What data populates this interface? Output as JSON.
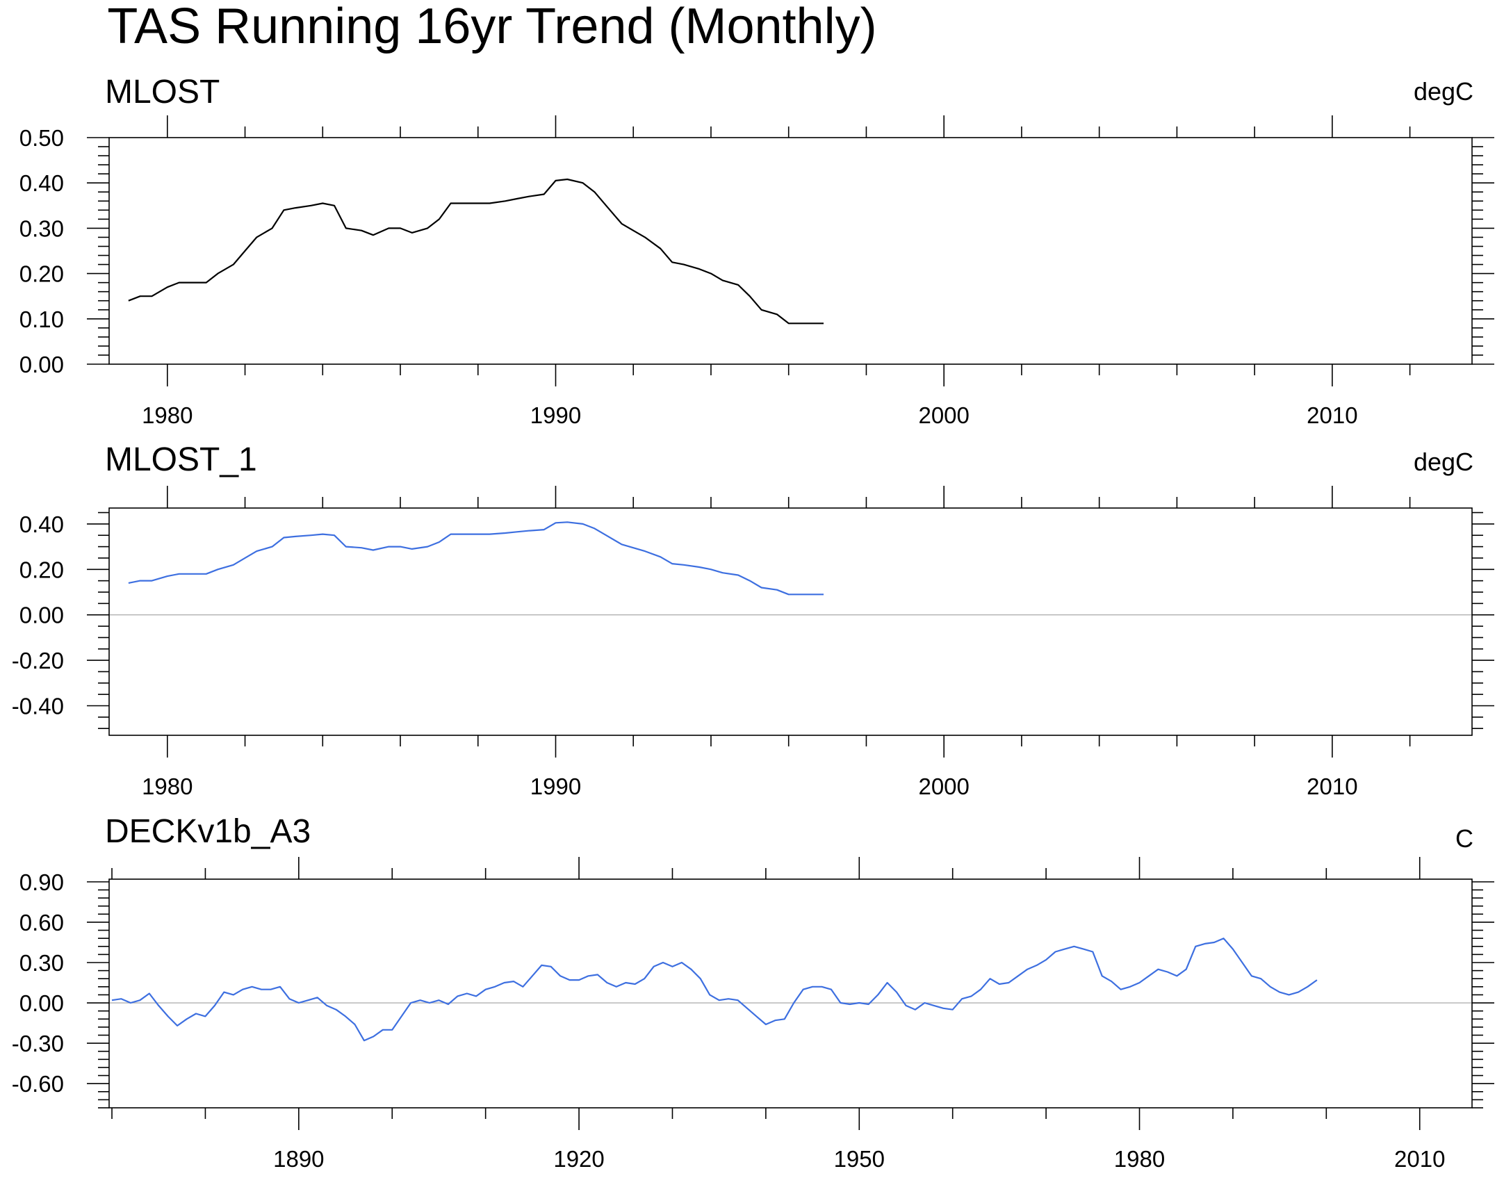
{
  "figure": {
    "title": "TAS Running 16yr Trend (Monthly)"
  },
  "chart_data": [
    {
      "type": "line",
      "title": "MLOST",
      "units": "degC",
      "xlim": [
        1978.5,
        2013.6
      ],
      "ylim": [
        0.0,
        0.5
      ],
      "x_major_ticks": [
        1980,
        1990,
        2000,
        2010
      ],
      "x_major_tick_labels": [
        "1980",
        "1990",
        "2000",
        "2010"
      ],
      "x_minor_step": 2,
      "y_major_ticks": [
        0.0,
        0.1,
        0.2,
        0.3,
        0.4,
        0.5
      ],
      "y_major_tick_labels": [
        "0.00",
        "0.10",
        "0.20",
        "0.30",
        "0.40",
        "0.50"
      ],
      "y_minor_step": 0.02,
      "zero_line": false,
      "series": [
        {
          "color": "#000000",
          "x": [
            1979.0,
            1979.3,
            1979.6,
            1980.0,
            1980.3,
            1980.7,
            1981.0,
            1981.3,
            1981.7,
            1982.0,
            1982.3,
            1982.7,
            1983.0,
            1983.3,
            1983.7,
            1984.0,
            1984.3,
            1984.6,
            1985.0,
            1985.3,
            1985.7,
            1986.0,
            1986.3,
            1986.7,
            1987.0,
            1987.3,
            1987.7,
            1988.0,
            1988.3,
            1988.7,
            1989.0,
            1989.3,
            1989.7,
            1990.0,
            1990.3,
            1990.7,
            1991.0,
            1991.3,
            1991.7,
            1992.0,
            1992.3,
            1992.7,
            1993.0,
            1993.3,
            1993.7,
            1994.0,
            1994.3,
            1994.7,
            1995.0,
            1995.3,
            1995.7,
            1996.0,
            1996.3,
            1996.7,
            1996.9
          ],
          "y": [
            0.14,
            0.15,
            0.15,
            0.17,
            0.18,
            0.18,
            0.18,
            0.2,
            0.22,
            0.25,
            0.28,
            0.3,
            0.34,
            0.345,
            0.35,
            0.355,
            0.35,
            0.3,
            0.295,
            0.285,
            0.3,
            0.3,
            0.29,
            0.3,
            0.32,
            0.355,
            0.355,
            0.355,
            0.355,
            0.36,
            0.365,
            0.37,
            0.375,
            0.405,
            0.408,
            0.4,
            0.38,
            0.35,
            0.31,
            0.295,
            0.28,
            0.255,
            0.225,
            0.22,
            0.21,
            0.2,
            0.185,
            0.175,
            0.15,
            0.12,
            0.11,
            0.09,
            0.09,
            0.09,
            0.09
          ]
        }
      ]
    },
    {
      "type": "line",
      "title": "MLOST_1",
      "units": "degC",
      "xlim": [
        1978.5,
        2013.6
      ],
      "ylim": [
        -0.53,
        0.47
      ],
      "x_major_ticks": [
        1980,
        1990,
        2000,
        2010
      ],
      "x_major_tick_labels": [
        "1980",
        "1990",
        "2000",
        "2010"
      ],
      "x_minor_step": 2,
      "y_major_ticks": [
        -0.4,
        -0.2,
        0.0,
        0.2,
        0.4
      ],
      "y_major_tick_labels": [
        "-0.40",
        "-0.20",
        "0.00",
        "0.20",
        "0.40"
      ],
      "y_minor_step": 0.05,
      "zero_line": true,
      "series": [
        {
          "color": "#3d6fe0",
          "x": [
            1979.0,
            1979.3,
            1979.6,
            1980.0,
            1980.3,
            1980.7,
            1981.0,
            1981.3,
            1981.7,
            1982.0,
            1982.3,
            1982.7,
            1983.0,
            1983.3,
            1983.7,
            1984.0,
            1984.3,
            1984.6,
            1985.0,
            1985.3,
            1985.7,
            1986.0,
            1986.3,
            1986.7,
            1987.0,
            1987.3,
            1987.7,
            1988.0,
            1988.3,
            1988.7,
            1989.0,
            1989.3,
            1989.7,
            1990.0,
            1990.3,
            1990.7,
            1991.0,
            1991.3,
            1991.7,
            1992.0,
            1992.3,
            1992.7,
            1993.0,
            1993.3,
            1993.7,
            1994.0,
            1994.3,
            1994.7,
            1995.0,
            1995.3,
            1995.7,
            1996.0,
            1996.3,
            1996.7,
            1996.9
          ],
          "y": [
            0.14,
            0.15,
            0.15,
            0.17,
            0.18,
            0.18,
            0.18,
            0.2,
            0.22,
            0.25,
            0.28,
            0.3,
            0.34,
            0.345,
            0.35,
            0.355,
            0.35,
            0.3,
            0.295,
            0.285,
            0.3,
            0.3,
            0.29,
            0.3,
            0.32,
            0.355,
            0.355,
            0.355,
            0.355,
            0.36,
            0.365,
            0.37,
            0.375,
            0.405,
            0.408,
            0.4,
            0.38,
            0.35,
            0.31,
            0.295,
            0.28,
            0.255,
            0.225,
            0.22,
            0.21,
            0.2,
            0.185,
            0.175,
            0.15,
            0.12,
            0.11,
            0.09,
            0.09,
            0.09,
            0.09
          ]
        }
      ]
    },
    {
      "type": "line",
      "title": "DECKv1b_A3",
      "units": "C",
      "xlim": [
        1869.7,
        2015.6
      ],
      "ylim": [
        -0.78,
        0.92
      ],
      "x_major_ticks": [
        1890,
        1920,
        1950,
        1980,
        2010
      ],
      "x_major_tick_labels": [
        "1890",
        "1920",
        "1950",
        "1980",
        "2010"
      ],
      "x_minor_step": 10,
      "y_major_ticks": [
        -0.6,
        -0.3,
        0.0,
        0.3,
        0.6,
        0.9
      ],
      "y_major_tick_labels": [
        "-0.60",
        "-0.30",
        "0.00",
        "0.30",
        "0.60",
        "0.90"
      ],
      "y_minor_step": 0.06,
      "zero_line": true,
      "series": [
        {
          "color": "#3d6fe0",
          "x": [
            1870,
            1871,
            1872,
            1873,
            1874,
            1875,
            1876,
            1877,
            1878,
            1879,
            1880,
            1881,
            1882,
            1883,
            1884,
            1885,
            1886,
            1887,
            1888,
            1889,
            1890,
            1891,
            1892,
            1893,
            1894,
            1895,
            1896,
            1897,
            1898,
            1899,
            1900,
            1901,
            1902,
            1903,
            1904,
            1905,
            1906,
            1907,
            1908,
            1909,
            1910,
            1911,
            1912,
            1913,
            1914,
            1915,
            1916,
            1917,
            1918,
            1919,
            1920,
            1921,
            1922,
            1923,
            1924,
            1925,
            1926,
            1927,
            1928,
            1929,
            1930,
            1931,
            1932,
            1933,
            1934,
            1935,
            1936,
            1937,
            1938,
            1939,
            1940,
            1941,
            1942,
            1943,
            1944,
            1945,
            1946,
            1947,
            1948,
            1949,
            1950,
            1951,
            1952,
            1953,
            1954,
            1955,
            1956,
            1957,
            1958,
            1959,
            1960,
            1961,
            1962,
            1963,
            1964,
            1965,
            1966,
            1967,
            1968,
            1969,
            1970,
            1971,
            1972,
            1973,
            1974,
            1975,
            1976,
            1977,
            1978,
            1979,
            1980,
            1981,
            1982,
            1983,
            1984,
            1985,
            1986,
            1987,
            1988,
            1989,
            1990,
            1991,
            1992,
            1993,
            1994,
            1995,
            1996,
            1997,
            1998,
            1999
          ],
          "y": [
            0.02,
            0.03,
            0.0,
            0.02,
            0.07,
            -0.02,
            -0.1,
            -0.17,
            -0.12,
            -0.08,
            -0.1,
            -0.02,
            0.08,
            0.06,
            0.1,
            0.12,
            0.1,
            0.1,
            0.12,
            0.03,
            0.0,
            0.02,
            0.04,
            -0.02,
            -0.05,
            -0.1,
            -0.16,
            -0.28,
            -0.25,
            -0.2,
            -0.2,
            -0.1,
            0.0,
            0.02,
            0.0,
            0.02,
            -0.01,
            0.05,
            0.07,
            0.05,
            0.1,
            0.12,
            0.15,
            0.16,
            0.12,
            0.2,
            0.28,
            0.27,
            0.2,
            0.17,
            0.17,
            0.2,
            0.21,
            0.15,
            0.12,
            0.15,
            0.14,
            0.18,
            0.27,
            0.3,
            0.27,
            0.3,
            0.25,
            0.18,
            0.06,
            0.02,
            0.03,
            0.02,
            -0.04,
            -0.1,
            -0.16,
            -0.13,
            -0.12,
            0.0,
            0.1,
            0.12,
            0.12,
            0.1,
            0.0,
            -0.01,
            0.0,
            -0.01,
            0.06,
            0.15,
            0.08,
            -0.02,
            -0.05,
            0.0,
            -0.02,
            -0.04,
            -0.05,
            0.03,
            0.05,
            0.1,
            0.18,
            0.14,
            0.15,
            0.2,
            0.25,
            0.28,
            0.32,
            0.38,
            0.4,
            0.42,
            0.4,
            0.38,
            0.2,
            0.16,
            0.1,
            0.12,
            0.15,
            0.2,
            0.25,
            0.23,
            0.2,
            0.25,
            0.42,
            0.44,
            0.45,
            0.48,
            0.4,
            0.3,
            0.2,
            0.18,
            0.12,
            0.08,
            0.06,
            0.08,
            0.12,
            0.17
          ]
        }
      ]
    }
  ]
}
